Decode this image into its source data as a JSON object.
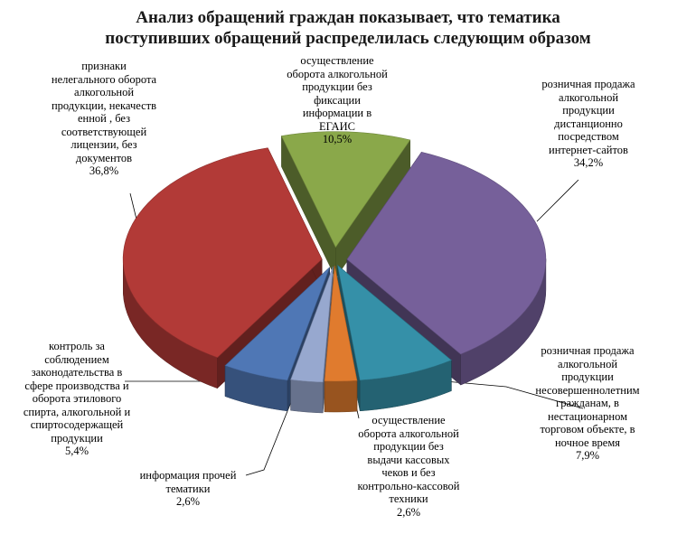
{
  "title_lines": [
    "Анализ обращений граждан показывает, что тематика",
    "поступивших обращений распределилась следующим образом"
  ],
  "colors": {
    "purple": "#76609a",
    "teal": "#3590a8",
    "orange": "#e07b2e",
    "lightblue": "#97a8cf",
    "blue": "#4f77b5",
    "red": "#b23a37",
    "green": "#8aa84a"
  },
  "chart_data": {
    "type": "pie",
    "title": "Анализ обращений граждан показывает, что тематика поступивших обращений распределилась следующим образом",
    "slices": [
      {
        "label": "розничная продажа алкогольной продукции дистанционно посредством интернет-сайтов",
        "value": 34.2,
        "value_text": "34,2%",
        "color": "#76609a"
      },
      {
        "label": "розничная продажа алкогольной продукции несовершеннолетним гражданам, в нестационарном торговом объекте, в ночное время",
        "value": 7.9,
        "value_text": "7,9%",
        "color": "#3590a8"
      },
      {
        "label": "осуществление оборота алкогольной продукции без выдачи кассовых чеков и без контрольно-кассовой техники",
        "value": 2.6,
        "value_text": "2,6%",
        "color": "#e07b2e"
      },
      {
        "label": "информация прочей тематики",
        "value": 2.6,
        "value_text": "2,6%",
        "color": "#97a8cf"
      },
      {
        "label": "контроль за соблюдением законодательства в сфере производства и оборота этилового спирта, алкогольной и спиртосодержащей продукции",
        "value": 5.4,
        "value_text": "5,4%",
        "color": "#4f77b5"
      },
      {
        "label": "признаки нелегального оборота алкогольной продукции, некачеств енной , без соответствующей лицензии, без документов",
        "value": 36.8,
        "value_text": "36,8%",
        "color": "#b23a37"
      },
      {
        "label": "осуществление оборота алкогольной продукции без фиксации информации в ЕГАИС",
        "value": 10.5,
        "value_text": "10,5%",
        "color": "#8aa84a"
      }
    ]
  },
  "labels": {
    "internet": {
      "lines": [
        "розничная продажа",
        "алкогольной",
        "продукции",
        "дистанционно",
        "посредством",
        "интернет-сайтов"
      ],
      "pct": "34,2%"
    },
    "minors": {
      "lines": [
        "розничная продажа",
        "алкогольной",
        "продукции",
        "несовершеннолетним",
        "гражданам, в",
        "нестационарном",
        "торговом объекте, в",
        "ночное время"
      ],
      "pct": "7,9%"
    },
    "cashless": {
      "lines": [
        "осуществление",
        "оборота алкогольной",
        "продукции без",
        "выдачи кассовых",
        "чеков и без",
        "контрольно-кассовой",
        "техники"
      ],
      "pct": "2,6%"
    },
    "other": {
      "lines": [
        "информация прочей",
        "тематики"
      ],
      "pct": "2,6%"
    },
    "control": {
      "lines": [
        "контроль за",
        "соблюдением",
        "законодательства в",
        "сфере производства и",
        "оборота этилового",
        "спирта, алкогольной и",
        "спиртосодержащей",
        "продукции"
      ],
      "pct": "5,4%"
    },
    "illegal": {
      "lines": [
        "признаки",
        "нелегального оборота",
        "алкогольной",
        "продукции, некачеств",
        "енной , без",
        "соответствующей",
        "лицензии, без",
        "документов"
      ],
      "pct": "36,8%"
    },
    "egais": {
      "lines": [
        "осуществление",
        "оборота алкогольной",
        "продукции без",
        "фиксации",
        "информации в",
        "ЕГАИС"
      ],
      "pct": "10,5%"
    }
  }
}
